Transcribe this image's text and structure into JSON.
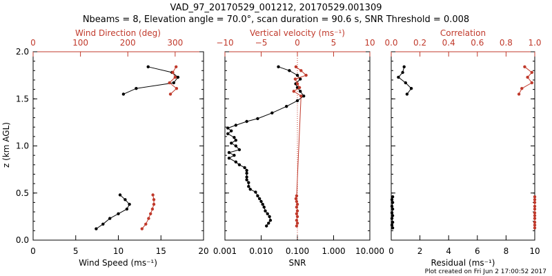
{
  "title_line1": "VAD_97_20170529_001212, 20170529.001309",
  "title_line2": "Nbeams = 8, Elevation angle = 70.0°, scan duration = 90.6 s, SNR Threshold = 0.008",
  "footer": "Plot created on Fri Jun  2 17:00:52 2017",
  "colors": {
    "black": "#000000",
    "red": "#c0392b"
  },
  "chart_data": [
    {
      "type": "line",
      "ylabel": "z (km AGL)",
      "ylim": [
        0.0,
        2.0
      ],
      "yticks": [
        "0.0",
        "0.5",
        "1.0",
        "1.5",
        "2.0"
      ],
      "bottom_axis": {
        "label": "Wind Speed (ms⁻¹)",
        "range": [
          0,
          20
        ],
        "ticks": [
          "0",
          "5",
          "10",
          "15",
          "20"
        ]
      },
      "top_axis": {
        "label": "Wind Direction (deg)",
        "range": [
          0,
          360
        ],
        "ticks": [
          "0",
          "100",
          "200",
          "300"
        ]
      },
      "series": [
        {
          "axis": "bottom",
          "color": "#000000",
          "x": [
            7.4,
            8.2,
            9.0,
            10.0,
            11.0,
            11.3,
            10.8,
            10.2
          ],
          "y": [
            0.12,
            0.17,
            0.23,
            0.28,
            0.33,
            0.38,
            0.43,
            0.48
          ]
        },
        {
          "axis": "top",
          "color": "#c0392b",
          "x": [
            230,
            238,
            244,
            248,
            252,
            255,
            255,
            253
          ],
          "y": [
            0.12,
            0.17,
            0.23,
            0.28,
            0.33,
            0.38,
            0.43,
            0.48
          ]
        },
        {
          "axis": "bottom",
          "color": "#000000",
          "x": [
            10.6,
            12.1,
            16.5,
            17.0,
            16.3,
            13.5
          ],
          "y": [
            1.55,
            1.61,
            1.67,
            1.73,
            1.78,
            1.84
          ]
        },
        {
          "axis": "top",
          "color": "#c0392b",
          "x": [
            290,
            303,
            288,
            300,
            295,
            302
          ],
          "y": [
            1.55,
            1.61,
            1.67,
            1.73,
            1.78,
            1.84
          ]
        }
      ]
    },
    {
      "type": "line",
      "ylim": [
        0.0,
        2.0
      ],
      "bottom_axis": {
        "label": "SNR",
        "scale": "log",
        "range": [
          0.001,
          10.0
        ],
        "ticks": [
          "0.001",
          "0.010",
          "0.100",
          "1.000",
          "10.000"
        ]
      },
      "top_axis": {
        "label": "Vertical velocity (ms⁻¹)",
        "range": [
          -10,
          10
        ],
        "ticks": [
          "−10",
          "−5",
          "0",
          "5",
          "10"
        ]
      },
      "reference_line": {
        "axis": "top",
        "value": 0,
        "style": "dotted",
        "color": "#c0392b"
      },
      "series": [
        {
          "axis": "bottom",
          "color": "#000000",
          "x": [
            0.014,
            0.016,
            0.018,
            0.017,
            0.015,
            0.013,
            0.012,
            0.011,
            0.01,
            0.009,
            0.008,
            0.007,
            0.005,
            0.0045,
            0.0045,
            0.004,
            0.004,
            0.004,
            0.004,
            0.0035,
            0.0025,
            0.002,
            0.0013,
            0.0018,
            0.0013,
            0.0025,
            0.002,
            0.0015,
            0.002,
            0.0018,
            0.0012,
            0.0015,
            0.0012,
            0.002,
            0.004,
            0.008,
            0.02,
            0.05,
            0.1,
            0.15,
            0.12,
            0.1,
            0.09,
            0.12,
            0.1,
            0.06,
            0.03
          ],
          "y": [
            0.15,
            0.18,
            0.21,
            0.25,
            0.28,
            0.31,
            0.35,
            0.38,
            0.41,
            0.44,
            0.47,
            0.51,
            0.54,
            0.57,
            0.61,
            0.64,
            0.67,
            0.71,
            0.74,
            0.77,
            0.8,
            0.83,
            0.87,
            0.9,
            0.93,
            0.96,
            1.0,
            1.03,
            1.06,
            1.09,
            1.13,
            1.16,
            1.19,
            1.22,
            1.26,
            1.29,
            1.35,
            1.42,
            1.48,
            1.53,
            1.58,
            1.62,
            1.66,
            1.71,
            1.75,
            1.8,
            1.84
          ]
        },
        {
          "axis": "top",
          "color": "#c0392b",
          "x": [
            -0.1,
            0.0,
            -0.1,
            0.0,
            -0.1,
            0.0,
            -0.1,
            0.0,
            -0.1,
            -0.2,
            -0.1,
            0.5,
            -0.5,
            0.3,
            0.0,
            -0.3,
            1.2,
            0.5,
            -0.2
          ],
          "y": [
            0.15,
            0.18,
            0.21,
            0.25,
            0.28,
            0.31,
            0.35,
            0.38,
            0.41,
            0.44,
            0.47,
            1.53,
            1.58,
            1.62,
            1.66,
            1.71,
            1.75,
            1.8,
            1.84
          ]
        }
      ]
    },
    {
      "type": "line",
      "ylim": [
        0.0,
        2.0
      ],
      "bottom_axis": {
        "label": "Residual (ms⁻¹)",
        "range": [
          0,
          10
        ],
        "ticks": [
          "0",
          "2",
          "4",
          "6",
          "8",
          "10"
        ]
      },
      "top_axis": {
        "label": "Correlation",
        "range": [
          0.0,
          1.0
        ],
        "ticks": [
          "0.0",
          "0.2",
          "0.4",
          "0.6",
          "0.8",
          "1.0"
        ]
      },
      "series": [
        {
          "axis": "bottom",
          "color": "#000000",
          "x": [
            0.1,
            0.05,
            0.1,
            0.05,
            0.1,
            0.05,
            0.1,
            0.05,
            0.1,
            0.05,
            0.1
          ],
          "y": [
            0.13,
            0.16,
            0.19,
            0.23,
            0.26,
            0.29,
            0.33,
            0.36,
            0.4,
            0.43,
            0.46
          ]
        },
        {
          "axis": "top",
          "color": "#c0392b",
          "x": [
            1.0,
            1.0,
            1.0,
            1.0,
            1.0,
            1.0,
            1.0,
            1.0,
            1.0,
            1.0,
            1.0
          ],
          "y": [
            0.13,
            0.16,
            0.19,
            0.23,
            0.26,
            0.29,
            0.33,
            0.36,
            0.4,
            0.43,
            0.46
          ]
        },
        {
          "axis": "bottom",
          "color": "#000000",
          "x": [
            1.1,
            1.4,
            1.0,
            0.5,
            0.8,
            0.9
          ],
          "y": [
            1.55,
            1.61,
            1.67,
            1.73,
            1.78,
            1.84
          ]
        },
        {
          "axis": "top",
          "color": "#c0392b",
          "x": [
            0.89,
            0.91,
            0.98,
            0.95,
            0.98,
            0.93
          ],
          "y": [
            1.55,
            1.61,
            1.67,
            1.73,
            1.78,
            1.84
          ]
        }
      ]
    }
  ]
}
